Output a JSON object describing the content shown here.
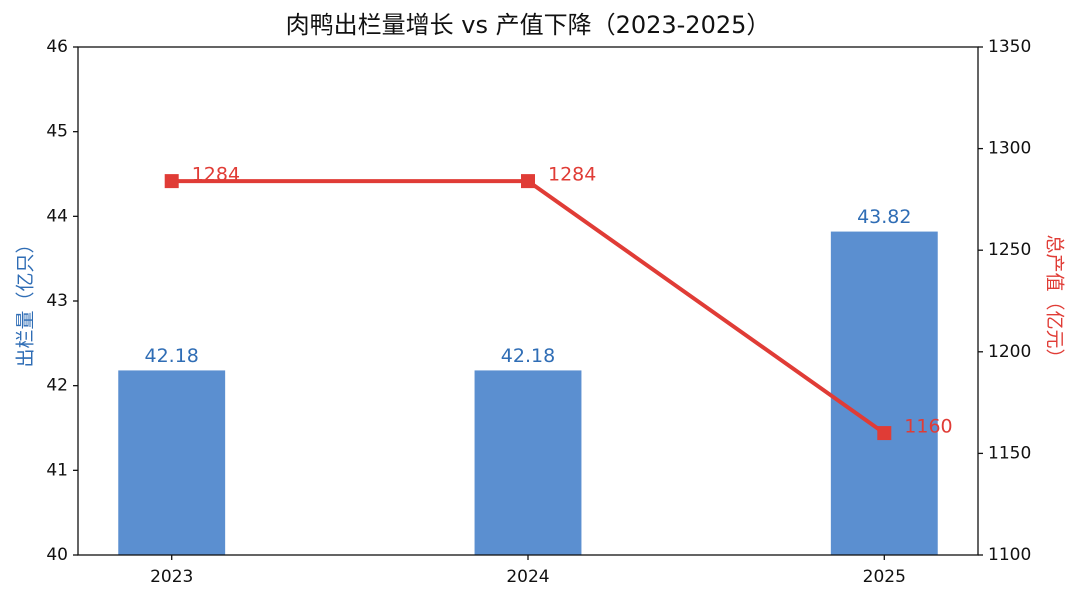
{
  "chart_data": {
    "type": "bar",
    "title": "肉鸭出栏量增长 vs 产值下降（2023-2025）",
    "ylabel": "出栏量（亿只）",
    "y2label": "总产值（亿元）",
    "categories": [
      "2023",
      "2024",
      "2025"
    ],
    "series": [
      {
        "type": "bar",
        "color": "#5b8fd0",
        "label_color": "#2f6db5",
        "values": [
          42.18,
          42.18,
          43.82
        ]
      },
      {
        "type": "line",
        "axis": "y2",
        "color": "#e03c36",
        "values": [
          1284,
          1284,
          1160
        ]
      }
    ],
    "ylim": [
      40,
      46
    ],
    "yticks": [
      40,
      41,
      42,
      43,
      44,
      45,
      46
    ],
    "y2lim": [
      1100,
      1350
    ],
    "y2ticks": [
      1100,
      1150,
      1200,
      1250,
      1300,
      1350
    ]
  }
}
